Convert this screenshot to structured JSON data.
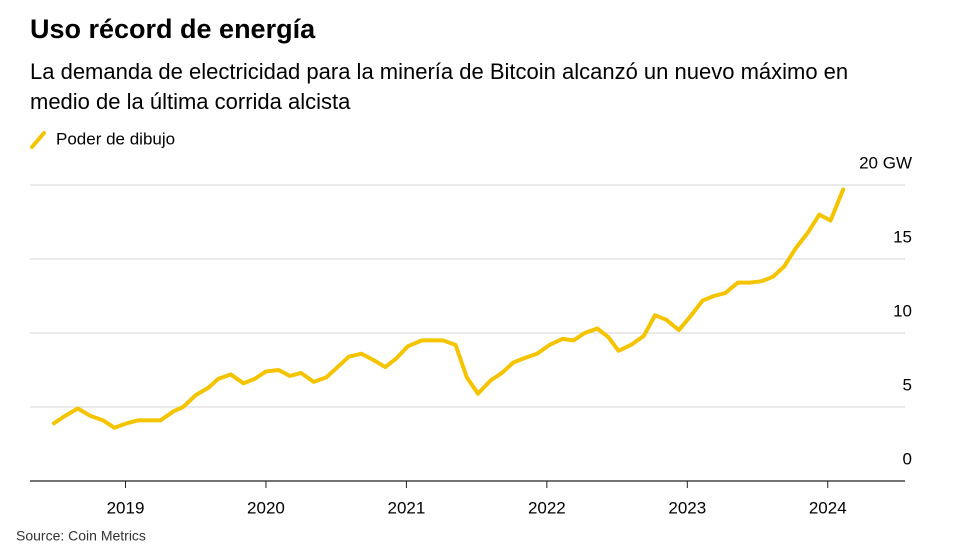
{
  "chart_data": {
    "type": "line",
    "title": "Uso récord de energía",
    "subtitle": "La demanda de electricidad para la minería de Bitcoin alcanzó un nuevo máximo en medio de la última corrida alcista",
    "source": "Source: Coin Metrics",
    "legend": "top-left",
    "grid": true,
    "xlim": [
      2018.32,
      2024.55
    ],
    "xticks": [
      2019,
      2020,
      2021,
      2022,
      2023,
      2024
    ],
    "ylim": [
      0,
      20
    ],
    "yticks": [
      0,
      5,
      10,
      15,
      {
        "value": 20,
        "label": "20 GW"
      }
    ],
    "x": [
      2018.49,
      2018.57,
      2018.66,
      2018.75,
      2018.84,
      2018.92,
      2019.01,
      2019.09,
      2019.25,
      2019.34,
      2019.41,
      2019.5,
      2019.59,
      2019.66,
      2019.75,
      2019.84,
      2019.92,
      2020.0,
      2020.09,
      2020.17,
      2020.25,
      2020.34,
      2020.43,
      2020.51,
      2020.59,
      2020.68,
      2020.76,
      2020.85,
      2020.93,
      2021.01,
      2021.11,
      2021.26,
      2021.35,
      2021.43,
      2021.51,
      2021.6,
      2021.68,
      2021.76,
      2021.84,
      2021.93,
      2022.02,
      2022.11,
      2022.19,
      2022.27,
      2022.36,
      2022.44,
      2022.51,
      2022.6,
      2022.69,
      2022.77,
      2022.85,
      2022.94,
      2023.02,
      2023.11,
      2023.19,
      2023.27,
      2023.36,
      2023.44,
      2023.53,
      2023.61,
      2023.69,
      2023.77,
      2023.86,
      2023.94,
      2024.02,
      2024.11
    ],
    "series": [
      {
        "name": "Poder de dibujo",
        "color": "#f5c400",
        "values": [
          3.9,
          4.4,
          4.9,
          4.4,
          4.1,
          3.6,
          3.9,
          4.1,
          4.1,
          4.7,
          5.0,
          5.8,
          6.3,
          6.9,
          7.2,
          6.6,
          6.9,
          7.4,
          7.5,
          7.1,
          7.3,
          6.7,
          7.0,
          7.7,
          8.4,
          8.6,
          8.2,
          7.7,
          8.3,
          9.1,
          9.5,
          9.5,
          9.2,
          7.0,
          5.9,
          6.8,
          7.3,
          8.0,
          8.3,
          8.6,
          9.2,
          9.6,
          9.5,
          10.0,
          10.3,
          9.7,
          8.8,
          9.2,
          9.8,
          11.2,
          10.9,
          10.2,
          11.1,
          12.2,
          12.5,
          12.7,
          13.4,
          13.4,
          13.5,
          13.8,
          14.5,
          15.7,
          16.8,
          18.0,
          17.6,
          19.7
        ]
      }
    ]
  }
}
